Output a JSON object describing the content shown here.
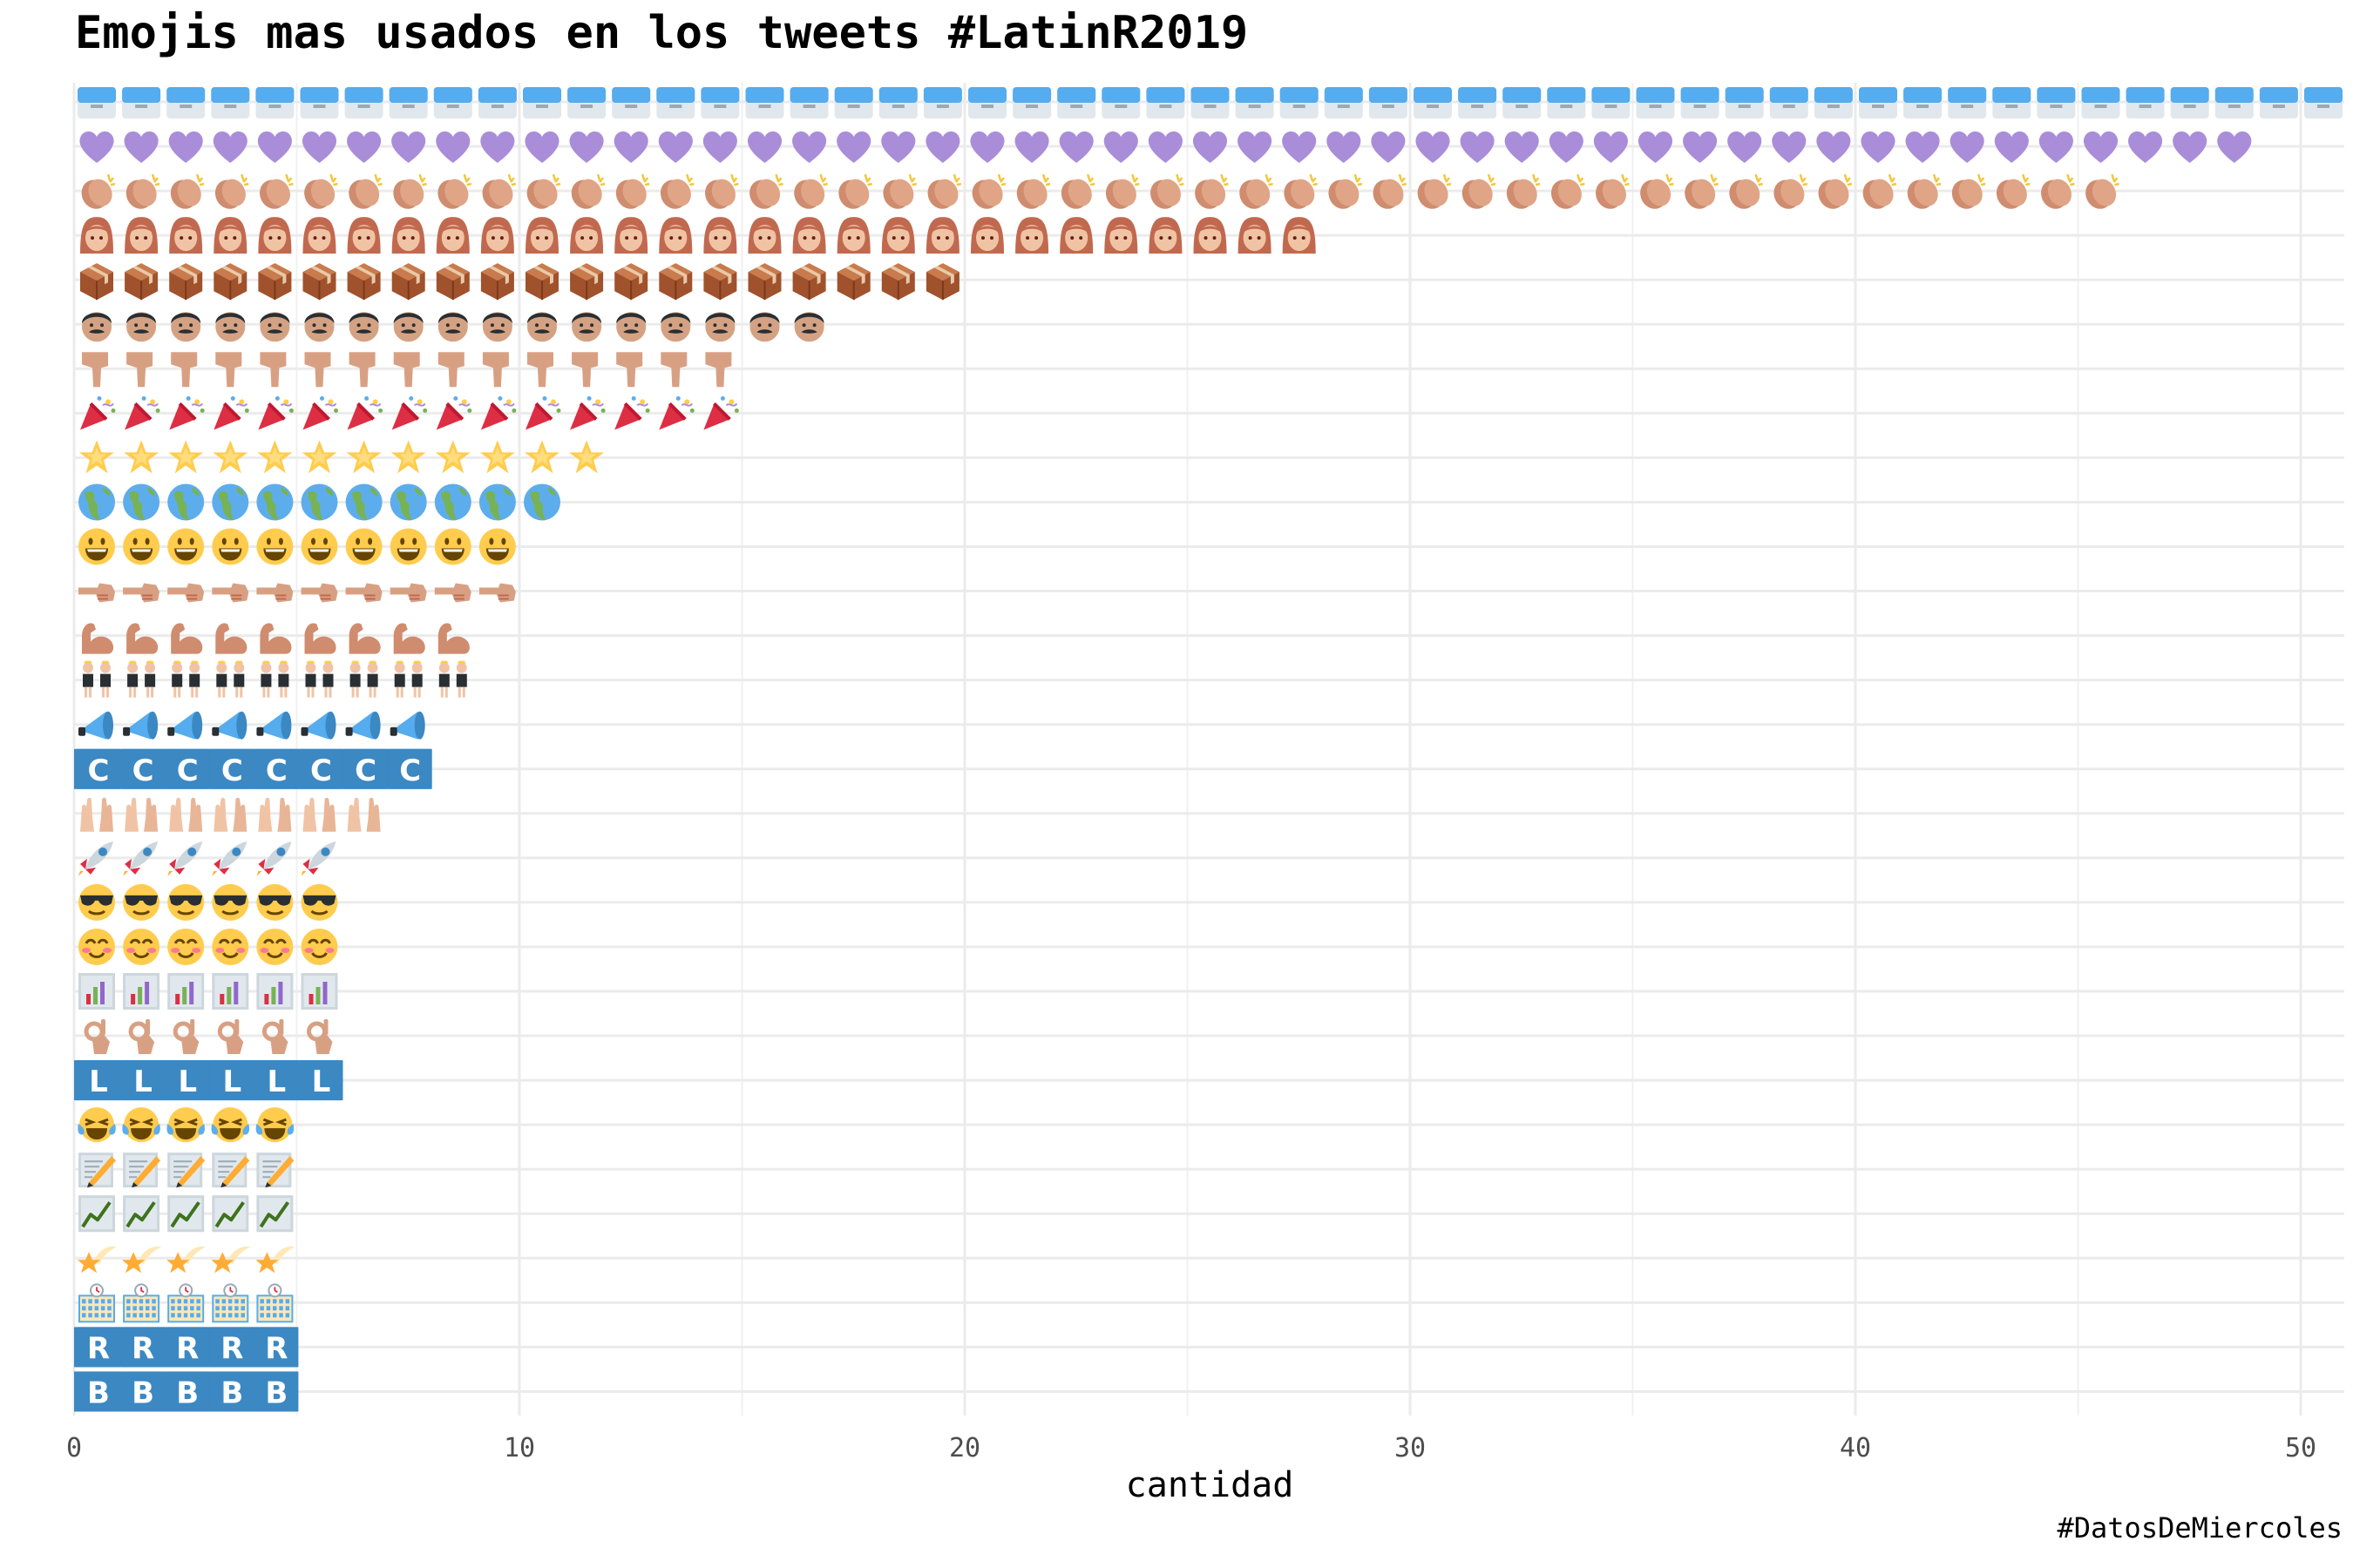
{
  "title": "Emojis mas usados en los tweets #LatinR2019",
  "caption": "#DatosDeMiercoles",
  "chart_data": {
    "type": "bar",
    "orientation": "horizontal",
    "mark": "stacked-emoji-pictogram",
    "xlabel": "cantidad",
    "ylabel": "",
    "xlim": [
      0,
      51
    ],
    "x_ticks": [
      0,
      10,
      20,
      30,
      40,
      50
    ],
    "grid": true,
    "categories": [
      "calendar-emoji",
      "purple-heart-emoji",
      "clapping-hands-emoji",
      "woman-emoji",
      "package-emoji",
      "man-emoji",
      "pointing-down-emoji",
      "party-popper-emoji",
      "glowing-star-emoji",
      "globe-americas-emoji",
      "grinning-face-emoji",
      "pointing-left-emoji",
      "flexed-biceps-emoji",
      "people-dancing-emoji",
      "megaphone-emoji",
      "regional-letter-c-emoji",
      "raising-hands-emoji",
      "rocket-emoji",
      "sunglasses-face-emoji",
      "smiling-eyes-emoji",
      "bar-chart-emoji",
      "ok-hand-emoji",
      "regional-letter-l-emoji",
      "tears-of-joy-emoji",
      "memo-emoji",
      "chart-increasing-emoji",
      "shooting-star-emoji",
      "office-building-emoji",
      "regional-letter-r-emoji",
      "regional-letter-b-emoji"
    ],
    "values": [
      51,
      49,
      46,
      28,
      20,
      17,
      15,
      15,
      12,
      11,
      10,
      10,
      9,
      9,
      8,
      8,
      7,
      6,
      6,
      6,
      6,
      6,
      6,
      5,
      5,
      5,
      5,
      5,
      5,
      5
    ],
    "icons": [
      {
        "kind": "calendar",
        "bg": "#55acee",
        "fg": "#e1e8ed"
      },
      {
        "kind": "heart",
        "bg": "#aa8dd8"
      },
      {
        "kind": "clap",
        "bg": "#d08c6e",
        "fg": "#f4c63a"
      },
      {
        "kind": "woman",
        "bg": "#c1694f",
        "fg": "#f1c3a5"
      },
      {
        "kind": "box",
        "bg": "#a0522d",
        "fg": "#e8c9a8"
      },
      {
        "kind": "man",
        "bg": "#d4a283",
        "fg": "#292f33"
      },
      {
        "kind": "pointdown",
        "bg": "#d8a083"
      },
      {
        "kind": "popper",
        "bg": "#dd2e44",
        "fg": "#ffcc4d"
      },
      {
        "kind": "star",
        "bg": "#ffcc4d",
        "fg": "#ffe8a0"
      },
      {
        "kind": "globe",
        "bg": "#5dadec",
        "fg": "#77b255"
      },
      {
        "kind": "face",
        "bg": "#ffcc4d",
        "fg": "#664500"
      },
      {
        "kind": "pointleft",
        "bg": "#d8a083",
        "fg": "#c1694f"
      },
      {
        "kind": "biceps",
        "bg": "#d08c6e"
      },
      {
        "kind": "dancers",
        "bg": "#f1c3a5",
        "fg": "#292f33"
      },
      {
        "kind": "megaphone",
        "bg": "#55acee",
        "fg": "#3b88c3"
      },
      {
        "kind": "letter",
        "bg": "#3b88c3",
        "letter": "C"
      },
      {
        "kind": "hands",
        "bg": "#f1c3a5"
      },
      {
        "kind": "rocket",
        "bg": "#3b88c3",
        "fg": "#dd2e44"
      },
      {
        "kind": "cool",
        "bg": "#ffcc4d",
        "fg": "#292f33"
      },
      {
        "kind": "blush",
        "bg": "#ffcc4d",
        "fg": "#ff7892"
      },
      {
        "kind": "barchart",
        "bg": "#ccd6dd",
        "fg": "#9266cc"
      },
      {
        "kind": "ok",
        "bg": "#d8a083"
      },
      {
        "kind": "letter",
        "bg": "#3b88c3",
        "letter": "L"
      },
      {
        "kind": "joy",
        "bg": "#ffcc4d",
        "fg": "#5dadec"
      },
      {
        "kind": "memo",
        "bg": "#ccd6dd",
        "fg": "#ffac33"
      },
      {
        "kind": "chartup",
        "bg": "#ccd6dd",
        "fg": "#3e721d"
      },
      {
        "kind": "shootingstar",
        "bg": "#ffac33",
        "fg": "#ffe8b6"
      },
      {
        "kind": "building",
        "bg": "#ffe8b6",
        "fg": "#55acee"
      },
      {
        "kind": "letter",
        "bg": "#3b88c3",
        "letter": "R"
      },
      {
        "kind": "letter",
        "bg": "#3b88c3",
        "letter": "B"
      }
    ]
  }
}
